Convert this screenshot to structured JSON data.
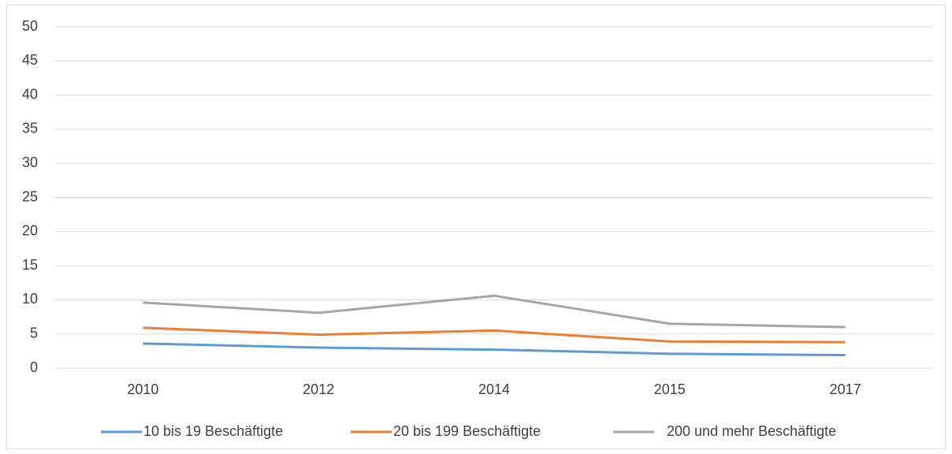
{
  "chart_data": {
    "type": "line",
    "categories": [
      "2010",
      "2012",
      "2014",
      "2015",
      "2017"
    ],
    "series": [
      {
        "name": "10 bis 19 Beschäftigte",
        "color": "#5b9bd5",
        "values": [
          3.6,
          3.0,
          2.7,
          2.1,
          1.9
        ]
      },
      {
        "name": "20 bis 199 Beschäftigte",
        "color": "#ed7d31",
        "values": [
          5.9,
          4.9,
          5.5,
          3.9,
          3.8
        ]
      },
      {
        "name": "200 und mehr Beschäftigte",
        "color": "#a5a5a5",
        "values": [
          9.6,
          8.1,
          10.6,
          6.5,
          6.0
        ]
      }
    ],
    "ylim": [
      0,
      50
    ],
    "yticks": [
      0,
      5,
      10,
      15,
      20,
      25,
      30,
      35,
      40,
      45,
      50
    ],
    "grid": true,
    "legend": "bottom"
  }
}
